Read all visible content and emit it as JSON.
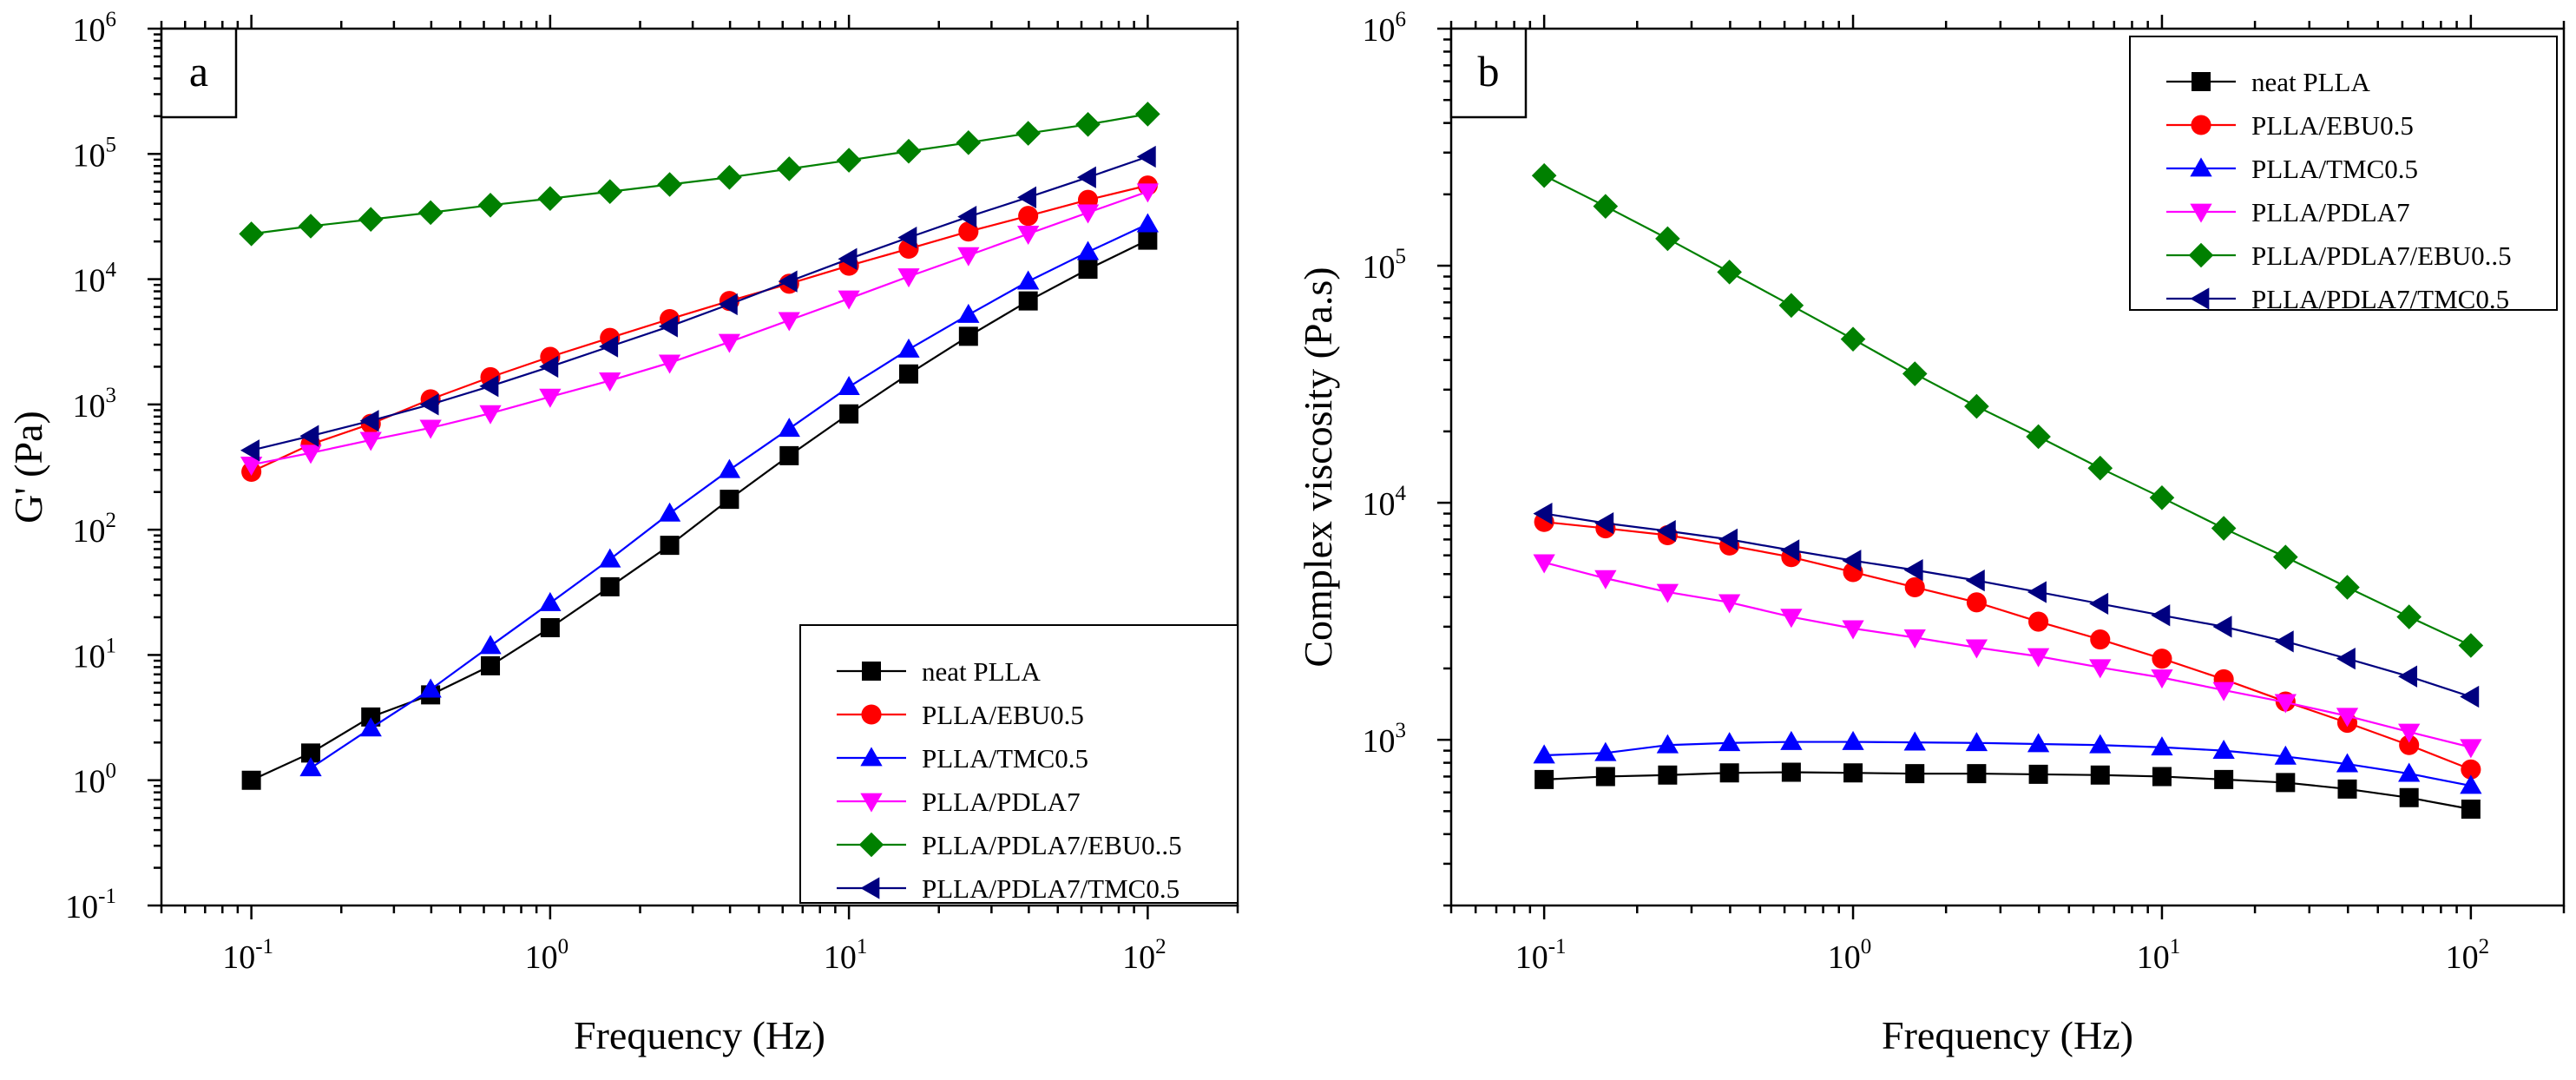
{
  "chart_data": [
    {
      "type": "line",
      "panel_label": "a",
      "xscale": "log",
      "yscale": "log",
      "xlim": [
        0.05,
        200
      ],
      "ylim": [
        0.1,
        1000000
      ],
      "xlabel": "Frequency (Hz)",
      "ylabel": "G' (Pa)",
      "x_ticks": [
        {
          "value": 0.1,
          "base": "10",
          "exp": "-1"
        },
        {
          "value": 1,
          "base": "10",
          "exp": "0"
        },
        {
          "value": 10,
          "base": "10",
          "exp": "1"
        },
        {
          "value": 100,
          "base": "10",
          "exp": "2"
        }
      ],
      "y_ticks": [
        {
          "value": 0.1,
          "base": "10",
          "exp": "-1"
        },
        {
          "value": 1,
          "base": "10",
          "exp": "0"
        },
        {
          "value": 10,
          "base": "10",
          "exp": "1"
        },
        {
          "value": 100,
          "base": "10",
          "exp": "2"
        },
        {
          "value": 1000,
          "base": "10",
          "exp": "3"
        },
        {
          "value": 10000,
          "base": "10",
          "exp": "4"
        },
        {
          "value": 100000,
          "base": "10",
          "exp": "5"
        },
        {
          "value": 1000000,
          "base": "10",
          "exp": "6"
        }
      ],
      "legend_position": "bottom-right",
      "x": [
        0.1,
        0.158,
        0.251,
        0.398,
        0.631,
        1,
        1.585,
        2.512,
        3.981,
        6.31,
        10,
        15.85,
        25.12,
        39.81,
        63.1,
        100
      ],
      "series": [
        {
          "name": "neat PLLA",
          "color": "#000000",
          "marker": "square",
          "values": [
            1.0,
            1.65,
            3.2,
            4.8,
            8.2,
            16.5,
            35,
            75,
            175,
            390,
            840,
            1750,
            3500,
            6700,
            12000,
            20500
          ]
        },
        {
          "name": "PLLA/EBU0.5",
          "color": "#ff0000",
          "marker": "circle",
          "values": [
            290,
            480,
            700,
            1100,
            1650,
            2400,
            3400,
            4800,
            6700,
            9200,
            12800,
            17500,
            24000,
            32000,
            43000,
            56000
          ]
        },
        {
          "name": "PLLA/TMC0.5",
          "color": "#0000ff",
          "marker": "triangle-up",
          "values": [
            null,
            1.25,
            2.6,
            5.3,
            11.8,
            26,
            58,
            135,
            300,
            640,
            1380,
            2750,
            5200,
            9600,
            16500,
            27500
          ]
        },
        {
          "name": "PLLA/PDLA7",
          "color": "#ff00ff",
          "marker": "triangle-down",
          "values": [
            330,
            410,
            520,
            650,
            850,
            1150,
            1550,
            2150,
            3150,
            4700,
            7000,
            10500,
            15500,
            23000,
            34000,
            50000
          ]
        },
        {
          "name": "PLLA/PDLA7/EBU0..5",
          "color": "#008000",
          "marker": "diamond",
          "values": [
            23000,
            26500,
            30000,
            34000,
            39000,
            44000,
            50000,
            57000,
            65000,
            76000,
            89000,
            105000,
            123000,
            146000,
            172000,
            208000
          ]
        },
        {
          "name": "PLLA/PDLA7/TMC0.5",
          "color": "#000080",
          "marker": "triangle-left",
          "values": [
            430,
            560,
            740,
            1000,
            1400,
            2000,
            2900,
            4200,
            6300,
            9600,
            14500,
            21500,
            31500,
            45000,
            65000,
            95000
          ]
        }
      ]
    },
    {
      "type": "line",
      "panel_label": "b",
      "xscale": "log",
      "yscale": "log",
      "xlim": [
        0.05,
        200
      ],
      "ylim": [
        200,
        1000000
      ],
      "xlabel": "Frequency (Hz)",
      "ylabel": "Complex viscosity (Pa.s)",
      "x_ticks": [
        {
          "value": 0.1,
          "base": "10",
          "exp": "-1"
        },
        {
          "value": 1,
          "base": "10",
          "exp": "0"
        },
        {
          "value": 10,
          "base": "10",
          "exp": "1"
        },
        {
          "value": 100,
          "base": "10",
          "exp": "2"
        }
      ],
      "y_ticks": [
        {
          "value": 1000,
          "base": "10",
          "exp": "3"
        },
        {
          "value": 10000,
          "base": "10",
          "exp": "4"
        },
        {
          "value": 100000,
          "base": "10",
          "exp": "5"
        },
        {
          "value": 1000000,
          "base": "10",
          "exp": "6"
        }
      ],
      "legend_position": "top-right",
      "x": [
        0.1,
        0.158,
        0.251,
        0.398,
        0.631,
        1,
        1.585,
        2.512,
        3.981,
        6.31,
        10,
        15.85,
        25.12,
        39.81,
        63.1,
        100
      ],
      "series": [
        {
          "name": "neat PLLA",
          "color": "#000000",
          "marker": "square",
          "values": [
            680,
            700,
            710,
            725,
            730,
            725,
            720,
            720,
            715,
            710,
            700,
            680,
            660,
            620,
            570,
            510
          ]
        },
        {
          "name": "PLLA/EBU0.5",
          "color": "#ff0000",
          "marker": "circle",
          "values": [
            8300,
            7800,
            7300,
            6600,
            5900,
            5100,
            4400,
            3800,
            3150,
            2650,
            2200,
            1800,
            1450,
            1180,
            950,
            750
          ]
        },
        {
          "name": "PLLA/TMC0.5",
          "color": "#0000ff",
          "marker": "triangle-up",
          "values": [
            860,
            880,
            950,
            970,
            980,
            980,
            975,
            970,
            960,
            950,
            930,
            900,
            850,
            790,
            720,
            640
          ]
        },
        {
          "name": "PLLA/PDLA7",
          "color": "#ff00ff",
          "marker": "triangle-down",
          "values": [
            5600,
            4800,
            4200,
            3800,
            3300,
            2950,
            2700,
            2450,
            2250,
            2020,
            1830,
            1620,
            1440,
            1260,
            1080,
            930
          ]
        },
        {
          "name": "PLLA/PDLA7/EBU0..5",
          "color": "#008000",
          "marker": "diamond",
          "values": [
            240000,
            178000,
            130000,
            94000,
            68000,
            49000,
            35000,
            25500,
            19000,
            14000,
            10500,
            7800,
            5900,
            4400,
            3300,
            2500
          ]
        },
        {
          "name": "PLLA/PDLA7/TMC0.5",
          "color": "#000080",
          "marker": "triangle-left",
          "values": [
            9000,
            8200,
            7600,
            7000,
            6300,
            5700,
            5200,
            4700,
            4200,
            3750,
            3350,
            3000,
            2600,
            2200,
            1850,
            1520
          ]
        }
      ]
    }
  ]
}
